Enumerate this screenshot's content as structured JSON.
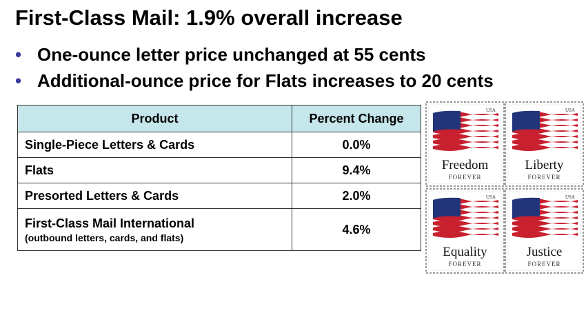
{
  "header": {
    "title": "First-Class Mail:  1.9% overall increase"
  },
  "bullets": [
    "One-ounce letter price unchanged at 55 cents",
    "Additional-ounce price for Flats increases to 20 cents"
  ],
  "table": {
    "columns": [
      "Product",
      "Percent Change"
    ],
    "rows": [
      {
        "product": "Single-Piece Letters & Cards",
        "change": "0.0%"
      },
      {
        "product": "Flats",
        "change": "9.4%"
      },
      {
        "product": "Presorted Letters & Cards",
        "change": "2.0%"
      },
      {
        "product": "First-Class Mail International",
        "note": "(outbound letters, cards, and flats)",
        "change": "4.6%"
      }
    ]
  },
  "stamps": [
    {
      "country": "USA",
      "name": "Freedom",
      "label": "FOREVER"
    },
    {
      "country": "USA",
      "name": "Liberty",
      "label": "FOREVER"
    },
    {
      "country": "USA",
      "name": "Equality",
      "label": "FOREVER"
    },
    {
      "country": "USA",
      "name": "Justice",
      "label": "FOREVER"
    }
  ]
}
